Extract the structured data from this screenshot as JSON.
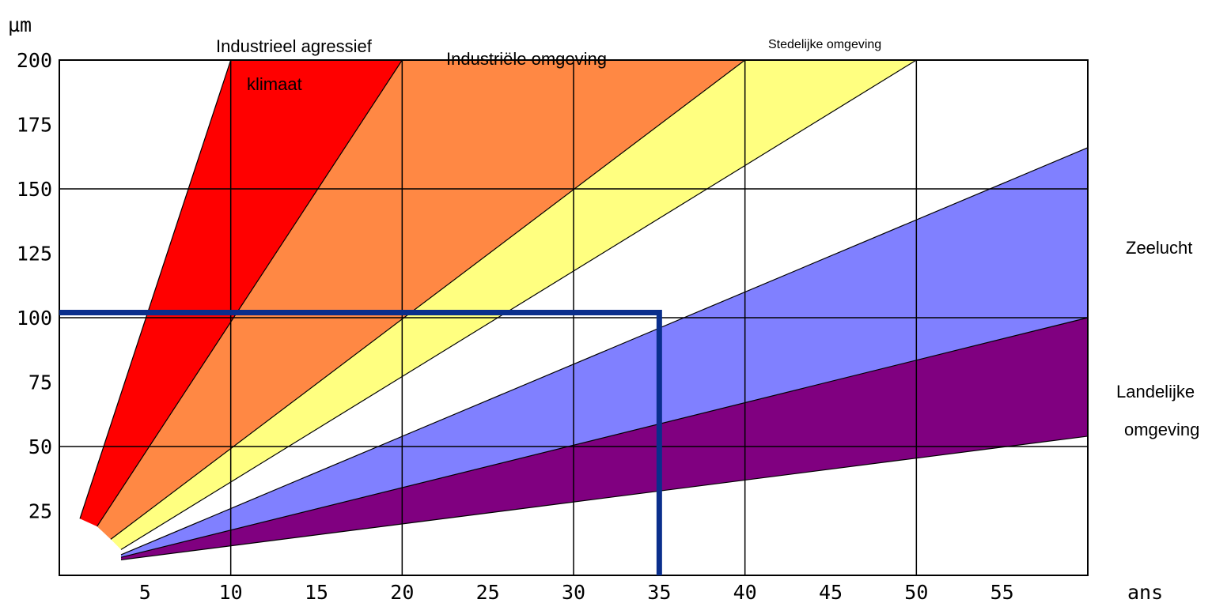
{
  "chart_data": {
    "type": "area",
    "xlabel": "ans",
    "ylabel": "µm",
    "xlim": [
      0,
      60
    ],
    "ylim": [
      0,
      200
    ],
    "x_ticks": [
      5,
      10,
      15,
      20,
      25,
      30,
      35,
      40,
      45,
      50,
      55
    ],
    "y_ticks": [
      25,
      50,
      75,
      100,
      125,
      150,
      175,
      200
    ],
    "grid": true,
    "colors": {
      "industrieel_agressief": "#ff0000",
      "industriele": "#ff8844",
      "stedelijke": "#ffff80",
      "zeelucht": "#8080ff",
      "landelijke": "#800080",
      "marker": "#0a2e8c"
    },
    "boundaries": [
      {
        "id": "b1",
        "points": [
          [
            1.2,
            22
          ],
          [
            10,
            200
          ]
        ]
      },
      {
        "id": "b2",
        "points": [
          [
            2.2,
            19
          ],
          [
            20,
            200
          ]
        ]
      },
      {
        "id": "b3",
        "points": [
          [
            3,
            14
          ],
          [
            40,
            200
          ]
        ]
      },
      {
        "id": "b4",
        "points": [
          [
            3.6,
            10
          ],
          [
            50,
            200
          ]
        ]
      },
      {
        "id": "b5",
        "points": [
          [
            3.6,
            8
          ],
          [
            60,
            166
          ]
        ]
      },
      {
        "id": "b6",
        "points": [
          [
            3.6,
            7
          ],
          [
            60,
            100
          ]
        ]
      },
      {
        "id": "b7",
        "points": [
          [
            3.6,
            6
          ],
          [
            60,
            54
          ]
        ]
      }
    ],
    "zones": [
      {
        "name": "Industrieel agressief klimaat",
        "color_key": "industrieel_agressief",
        "lower": "b2",
        "upper": "b1"
      },
      {
        "name": "Industriële omgeving",
        "color_key": "industriele",
        "lower": "b3",
        "upper": "b2"
      },
      {
        "name": "Stedelijke omgeving",
        "color_key": "stedelijke",
        "lower": "b4",
        "upper": "b3"
      },
      {
        "name": "Zeelucht",
        "color_key": "zeelucht",
        "lower": "b6",
        "upper": "b5"
      },
      {
        "name": "Landelijke omgeving",
        "color_key": "landelijke",
        "lower": "b7",
        "upper": "b6"
      }
    ],
    "marker": {
      "x": 35,
      "y": 102
    },
    "labels": {
      "industrieel_1": "Industrieel agressief",
      "industrieel_2": "klimaat",
      "industriele": "Industriële omgeving",
      "stedelijke": "Stedelijke omgeving",
      "zeelucht": "Zeelucht",
      "landelijke_1": "Landelijke",
      "landelijke_2": "omgeving"
    }
  }
}
